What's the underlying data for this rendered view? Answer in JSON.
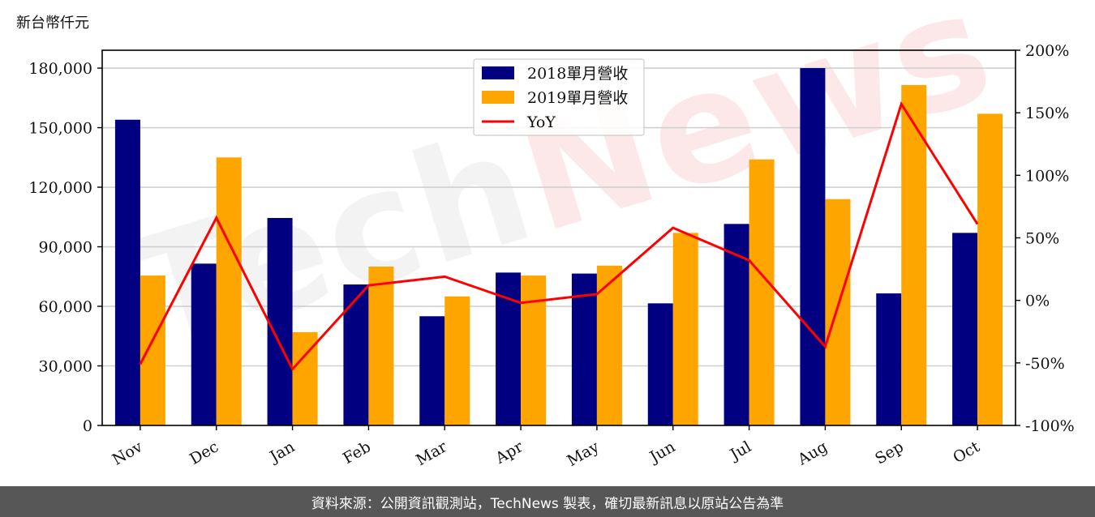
{
  "unit_label": "新台幣仟元",
  "footer_text": "資料來源：公開資訊觀測站，TechNews 製表，確切最新訊息以原站公告為準",
  "colors": {
    "series_2018": "#000080",
    "series_2019": "#FFA500",
    "yoy": "#FF0000",
    "footer_bg": "#575757"
  },
  "chart_data": {
    "type": "bar",
    "categories": [
      "Nov",
      "Dec",
      "Jan",
      "Feb",
      "Mar",
      "Apr",
      "May",
      "Jun",
      "Jul",
      "Aug",
      "Sep",
      "Oct"
    ],
    "series": [
      {
        "name": "2018單月營收",
        "values": [
          154000,
          81500,
          104500,
          71000,
          55000,
          77000,
          76500,
          61500,
          101500,
          180000,
          66500,
          97000
        ]
      },
      {
        "name": "2019單月營收",
        "values": [
          75500,
          135000,
          47000,
          80000,
          65000,
          75500,
          80500,
          97000,
          134000,
          114000,
          171500,
          157000
        ]
      }
    ],
    "line": {
      "name": "YoY",
      "values": [
        -51,
        66,
        -55,
        12,
        19,
        -2,
        5,
        58,
        32,
        -37,
        157,
        61
      ]
    },
    "ylim": [
      0,
      189000
    ],
    "yticks": [
      0,
      30000,
      60000,
      90000,
      120000,
      150000,
      180000
    ],
    "ytick_labels": [
      "0",
      "30,000",
      "60,000",
      "90,000",
      "120,000",
      "150,000",
      "180,000"
    ],
    "y2lim": [
      -100,
      200
    ],
    "y2ticks": [
      -100,
      -50,
      0,
      50,
      100,
      150,
      200
    ],
    "y2tick_labels": [
      "-100%",
      "-50%",
      "0%",
      "50%",
      "100%",
      "150%",
      "200%"
    ],
    "grid": true,
    "legend": "top-center"
  }
}
